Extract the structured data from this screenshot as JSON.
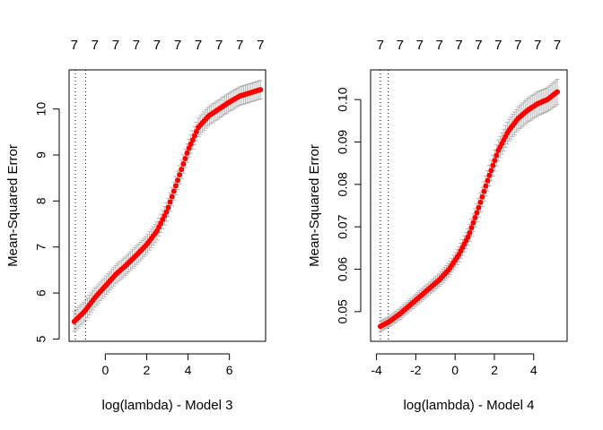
{
  "chart_data": [
    {
      "type": "line",
      "title": "",
      "xlabel": "log(lambda) - Model 3",
      "ylabel": "Mean-Squared Error",
      "xlim": [
        -1.75,
        7.75
      ],
      "ylim": [
        4.95,
        10.85
      ],
      "xticks": [
        0,
        2,
        4,
        6
      ],
      "yticks": [
        5,
        6,
        7,
        8,
        9,
        10
      ],
      "top_tick_labels": [
        "7",
        "7",
        "7",
        "7",
        "7",
        "7",
        "7",
        "7",
        "7",
        "7"
      ],
      "top_ticks_x": [
        -1.5,
        -0.5,
        0.5,
        1.5,
        2.5,
        3.5,
        4.5,
        5.5,
        6.5,
        7.5
      ],
      "vlines": [
        -1.45,
        -0.95
      ],
      "grid": false,
      "series": [
        {
          "style": "points-with-errorbars",
          "color": "#ff0000",
          "errorbar_color": "#a9a9a9",
          "x": [
            -1.5,
            -1.0,
            -0.5,
            0.0,
            0.5,
            1.0,
            1.5,
            2.0,
            2.5,
            3.0,
            3.5,
            4.0,
            4.5,
            5.0,
            5.5,
            6.0,
            6.5,
            7.0,
            7.5
          ],
          "y": [
            5.38,
            5.6,
            5.9,
            6.15,
            6.4,
            6.6,
            6.82,
            7.05,
            7.35,
            7.8,
            8.45,
            9.1,
            9.6,
            9.85,
            10.0,
            10.15,
            10.28,
            10.35,
            10.42
          ],
          "error": [
            0.22,
            0.22,
            0.21,
            0.2,
            0.2,
            0.2,
            0.2,
            0.2,
            0.2,
            0.2,
            0.2,
            0.2,
            0.2,
            0.2,
            0.2,
            0.2,
            0.2,
            0.2,
            0.2
          ]
        }
      ]
    },
    {
      "type": "line",
      "title": "",
      "xlabel": "log(lambda) - Model 4",
      "ylabel": "Mean-Squared Error",
      "xlim": [
        -4.3,
        5.7
      ],
      "ylim": [
        0.043,
        0.107
      ],
      "xticks": [
        -4,
        -2,
        0,
        2,
        4
      ],
      "yticks": [
        0.05,
        0.06,
        0.07,
        0.08,
        0.09,
        0.1
      ],
      "ytick_labels": [
        "0.05",
        "0.06",
        "0.07",
        "0.08",
        "0.09",
        "0.10"
      ],
      "top_tick_labels": [
        "7",
        "7",
        "7",
        "7",
        "7",
        "7",
        "7",
        "7",
        "7",
        "7"
      ],
      "top_ticks_x": [
        -3.8,
        -2.8,
        -1.8,
        -0.8,
        0.2,
        1.2,
        2.2,
        3.2,
        4.2,
        5.2
      ],
      "vlines": [
        -3.8,
        -3.4
      ],
      "grid": false,
      "series": [
        {
          "style": "points-with-errorbars",
          "color": "#ff0000",
          "errorbar_color": "#a9a9a9",
          "x": [
            -3.8,
            -3.3,
            -2.8,
            -2.3,
            -1.8,
            -1.3,
            -0.8,
            -0.3,
            0.2,
            0.7,
            1.2,
            1.7,
            2.2,
            2.7,
            3.2,
            3.7,
            4.2,
            4.7,
            5.2
          ],
          "y": [
            0.0465,
            0.0478,
            0.0495,
            0.0515,
            0.0535,
            0.0555,
            0.0575,
            0.06,
            0.0635,
            0.068,
            0.0745,
            0.0815,
            0.088,
            0.0925,
            0.0955,
            0.0975,
            0.099,
            0.1,
            0.1018
          ],
          "error": [
            0.0012,
            0.0012,
            0.0013,
            0.0013,
            0.0014,
            0.0014,
            0.0015,
            0.0016,
            0.0018,
            0.002,
            0.0022,
            0.0024,
            0.0025,
            0.0026,
            0.0027,
            0.0028,
            0.0028,
            0.0028,
            0.003
          ]
        }
      ]
    }
  ]
}
